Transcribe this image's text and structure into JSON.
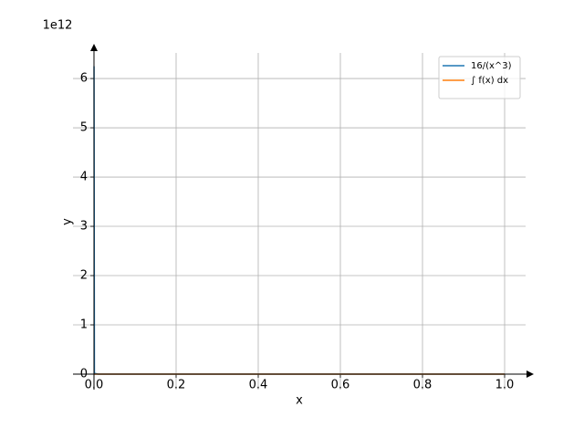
{
  "chart_data": {
    "type": "line",
    "xlabel": "x",
    "ylabel": "y",
    "offset_label": "1e12",
    "x": [
      0.000137,
      0.001,
      0.01,
      0.1,
      1
    ],
    "series": [
      {
        "name": "16/(x^3)",
        "color": "#1f77b4",
        "values": [
          6250000000000,
          16000000000,
          16000000,
          16000,
          16
        ]
      },
      {
        "name": "∫ f(x) dx",
        "color": "#ff7f0e",
        "values": [
          0,
          0,
          0,
          0,
          0
        ]
      }
    ],
    "xlim": [
      -0.0511,
      1.0511
    ],
    "ylim": [
      -315000000000,
      6520000000000
    ],
    "xticks": [
      {
        "value": 0,
        "label": "0.0"
      },
      0.2,
      0.4,
      0.6,
      0.8,
      {
        "value": 1,
        "label": "1.0"
      }
    ],
    "yticks": [
      {
        "value": 0,
        "label": "0"
      },
      {
        "value": 1000000000000,
        "label": "1"
      },
      {
        "value": 2000000000000,
        "label": "2"
      },
      {
        "value": 3000000000000,
        "label": "3"
      },
      {
        "value": 4000000000000,
        "label": "4"
      },
      {
        "value": 5000000000000,
        "label": "5"
      },
      {
        "value": 6000000000000,
        "label": "6"
      }
    ],
    "grid": true,
    "legend": "upper right"
  }
}
